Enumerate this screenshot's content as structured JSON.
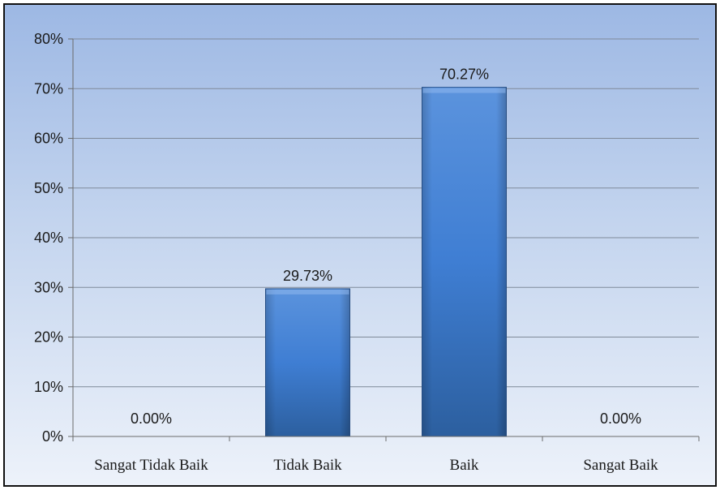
{
  "chart_data": {
    "type": "bar",
    "title": "",
    "xlabel": "",
    "ylabel": "",
    "categories": [
      "Sangat Tidak Baik",
      "Tidak Baik",
      "Baik",
      "Sangat Baik"
    ],
    "values": [
      0.0,
      29.73,
      70.27,
      0.0
    ],
    "data_labels": [
      "0.00%",
      "29.73%",
      "70.27%",
      "0.00%"
    ],
    "y_ticks": [
      "0%",
      "10%",
      "20%",
      "30%",
      "40%",
      "50%",
      "60%",
      "70%",
      "80%"
    ],
    "ylim": [
      0,
      80
    ],
    "grid": true,
    "legend": "none",
    "colors": {
      "bar_top": "#5b93dd",
      "bar_mid": "#3f7ed3",
      "bar_bottom": "#2c5f9f",
      "gridline": "#7f8a99",
      "axis": "#6b6b6b"
    }
  }
}
